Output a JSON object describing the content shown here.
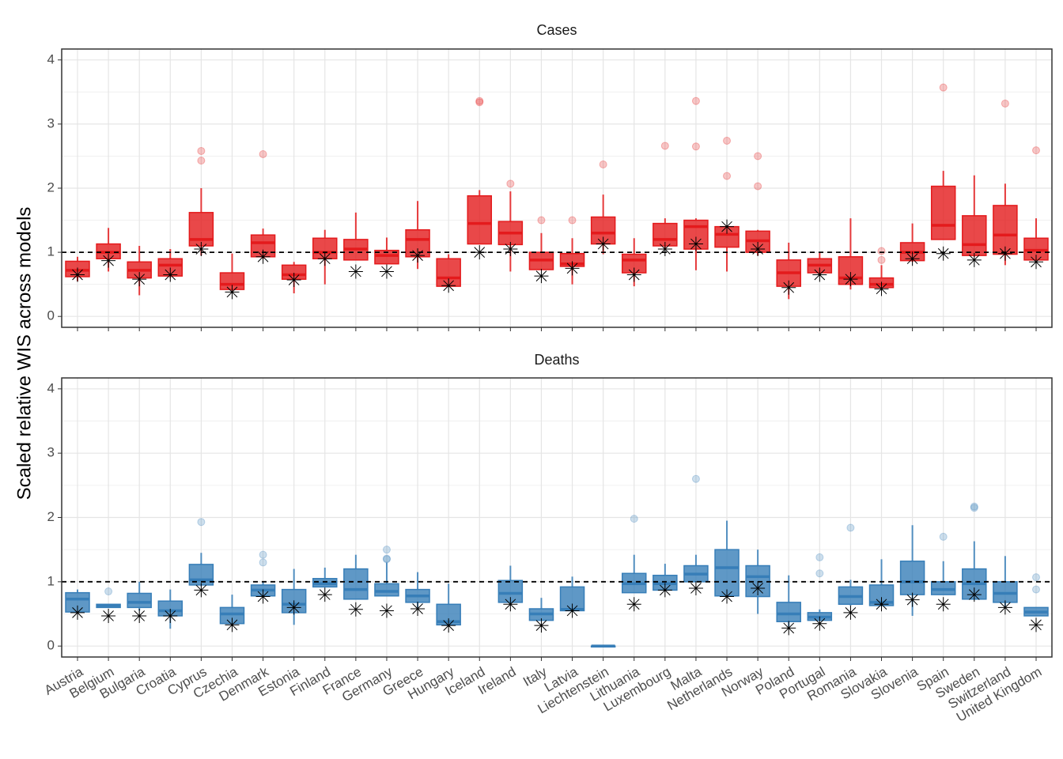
{
  "chart_data": [
    {
      "type": "box",
      "title": "Cases",
      "ylabel": "Scaled relative WIS across models",
      "color": "#e41a1c",
      "hline": 1,
      "grid": true,
      "ylim": [
        -0.17,
        4.17
      ],
      "yticks": [
        0,
        1,
        2,
        3,
        4
      ],
      "categories": [
        "Austria",
        "Belgium",
        "Bulgaria",
        "Croatia",
        "Cyprus",
        "Czechia",
        "Denmark",
        "Estonia",
        "Finland",
        "France",
        "Germany",
        "Greece",
        "Hungary",
        "Iceland",
        "Ireland",
        "Italy",
        "Latvia",
        "Liechtenstein",
        "Lithuania",
        "Luxembourg",
        "Malta",
        "Netherlands",
        "Norway",
        "Poland",
        "Portugal",
        "Romania",
        "Slovakia",
        "Slovenia",
        "Spain",
        "Sweden",
        "Switzerland",
        "United Kingdom"
      ],
      "boxes": [
        {
          "low": 0.55,
          "q1": 0.62,
          "median": 0.72,
          "q3": 0.86,
          "high": 0.93,
          "outliers": [],
          "star": 0.65
        },
        {
          "low": 0.7,
          "q1": 0.9,
          "median": 1.0,
          "q3": 1.13,
          "high": 1.38,
          "outliers": [],
          "star": 0.87
        },
        {
          "low": 0.33,
          "q1": 0.6,
          "median": 0.72,
          "q3": 0.85,
          "high": 1.1,
          "outliers": [],
          "star": 0.58
        },
        {
          "low": 0.6,
          "q1": 0.63,
          "median": 0.8,
          "q3": 0.9,
          "high": 1.05,
          "outliers": [],
          "star": 0.65
        },
        {
          "low": 0.95,
          "q1": 1.1,
          "median": 1.2,
          "q3": 1.62,
          "high": 2.0,
          "outliers": [
            2.43,
            2.58
          ],
          "star": 1.05
        },
        {
          "low": 0.4,
          "q1": 0.42,
          "median": 0.5,
          "q3": 0.68,
          "high": 0.98,
          "outliers": [],
          "star": 0.38
        },
        {
          "low": 0.9,
          "q1": 0.93,
          "median": 1.15,
          "q3": 1.27,
          "high": 1.37,
          "outliers": [
            2.53
          ],
          "star": 0.93
        },
        {
          "low": 0.36,
          "q1": 0.58,
          "median": 0.65,
          "q3": 0.8,
          "high": 0.85,
          "outliers": [],
          "star": 0.57
        },
        {
          "low": 0.5,
          "q1": 0.9,
          "median": 1.0,
          "q3": 1.22,
          "high": 1.35,
          "outliers": [],
          "star": 0.9
        },
        {
          "low": 0.88,
          "q1": 0.88,
          "median": 1.05,
          "q3": 1.2,
          "high": 1.62,
          "outliers": [],
          "star": 0.7
        },
        {
          "low": 0.82,
          "q1": 0.82,
          "median": 0.95,
          "q3": 1.03,
          "high": 1.23,
          "outliers": [],
          "star": 0.7
        },
        {
          "low": 0.74,
          "q1": 0.93,
          "median": 1.2,
          "q3": 1.35,
          "high": 1.8,
          "outliers": [],
          "star": 0.95
        },
        {
          "low": 0.47,
          "q1": 0.47,
          "median": 0.6,
          "q3": 0.9,
          "high": 0.97,
          "outliers": [],
          "star": 0.48
        },
        {
          "low": 1.13,
          "q1": 1.13,
          "median": 1.45,
          "q3": 1.88,
          "high": 1.97,
          "outliers": [
            3.34,
            3.36
          ],
          "star": 1.0
        },
        {
          "low": 0.7,
          "q1": 1.12,
          "median": 1.3,
          "q3": 1.48,
          "high": 1.95,
          "outliers": [
            2.07
          ],
          "star": 1.05
        },
        {
          "low": 0.73,
          "q1": 0.73,
          "median": 0.88,
          "q3": 1.0,
          "high": 1.3,
          "outliers": [
            1.5
          ],
          "star": 0.63
        },
        {
          "low": 0.5,
          "q1": 0.78,
          "median": 0.82,
          "q3": 0.98,
          "high": 1.22,
          "outliers": [
            1.5
          ],
          "star": 0.75
        },
        {
          "low": 0.97,
          "q1": 1.13,
          "median": 1.3,
          "q3": 1.55,
          "high": 1.9,
          "outliers": [
            2.37
          ],
          "star": 1.13
        },
        {
          "low": 0.47,
          "q1": 0.68,
          "median": 0.88,
          "q3": 0.97,
          "high": 1.22,
          "outliers": [],
          "star": 0.65
        },
        {
          "low": 1.05,
          "q1": 1.1,
          "median": 1.2,
          "q3": 1.45,
          "high": 1.53,
          "outliers": [
            2.66
          ],
          "star": 1.05
        },
        {
          "low": 0.72,
          "q1": 1.05,
          "median": 1.4,
          "q3": 1.5,
          "high": 1.53,
          "outliers": [
            2.65,
            3.36
          ],
          "star": 1.13
        },
        {
          "low": 0.7,
          "q1": 1.08,
          "median": 1.28,
          "q3": 1.4,
          "high": 1.42,
          "outliers": [
            2.19,
            2.74
          ],
          "star": 1.4
        },
        {
          "low": 0.95,
          "q1": 1.0,
          "median": 1.18,
          "q3": 1.33,
          "high": 1.35,
          "outliers": [
            2.03,
            2.5
          ],
          "star": 1.05
        },
        {
          "low": 0.27,
          "q1": 0.47,
          "median": 0.68,
          "q3": 0.88,
          "high": 1.15,
          "outliers": [],
          "star": 0.45
        },
        {
          "low": 0.65,
          "q1": 0.68,
          "median": 0.8,
          "q3": 0.9,
          "high": 1.0,
          "outliers": [],
          "star": 0.65
        },
        {
          "low": 0.42,
          "q1": 0.5,
          "median": 0.6,
          "q3": 0.93,
          "high": 1.53,
          "outliers": [],
          "star": 0.58
        },
        {
          "low": 0.42,
          "q1": 0.45,
          "median": 0.5,
          "q3": 0.6,
          "high": 0.8,
          "outliers": [
            0.88,
            1.02
          ],
          "star": 0.43
        },
        {
          "low": 0.85,
          "q1": 0.87,
          "median": 1.0,
          "q3": 1.15,
          "high": 1.45,
          "outliers": [],
          "star": 0.9
        },
        {
          "low": 1.2,
          "q1": 1.2,
          "median": 1.42,
          "q3": 2.03,
          "high": 2.27,
          "outliers": [
            3.57
          ],
          "star": 0.98
        },
        {
          "low": 0.93,
          "q1": 0.95,
          "median": 1.12,
          "q3": 1.57,
          "high": 2.2,
          "outliers": [],
          "star": 0.88
        },
        {
          "low": 0.8,
          "q1": 0.97,
          "median": 1.27,
          "q3": 1.73,
          "high": 2.07,
          "outliers": [
            3.32
          ],
          "star": 0.98
        },
        {
          "low": 0.88,
          "q1": 0.88,
          "median": 1.03,
          "q3": 1.22,
          "high": 1.53,
          "outliers": [
            2.59
          ],
          "star": 0.85
        }
      ]
    },
    {
      "type": "box",
      "title": "Deaths",
      "color": "#377eb8",
      "hline": 1,
      "grid": true,
      "ylim": [
        -0.17,
        4.17
      ],
      "yticks": [
        0,
        1,
        2,
        3,
        4
      ],
      "categories": [
        "Austria",
        "Belgium",
        "Bulgaria",
        "Croatia",
        "Cyprus",
        "Czechia",
        "Denmark",
        "Estonia",
        "Finland",
        "France",
        "Germany",
        "Greece",
        "Hungary",
        "Iceland",
        "Ireland",
        "Italy",
        "Latvia",
        "Liechtenstein",
        "Lithuania",
        "Luxembourg",
        "Malta",
        "Netherlands",
        "Norway",
        "Poland",
        "Portugal",
        "Romania",
        "Slovakia",
        "Slovenia",
        "Spain",
        "Sweden",
        "Switzerland",
        "United Kingdom"
      ],
      "boxes": [
        {
          "low": 0.52,
          "q1": 0.53,
          "median": 0.73,
          "q3": 0.83,
          "high": 0.88,
          "outliers": [],
          "star": 0.52
        },
        {
          "low": 0.6,
          "q1": 0.6,
          "median": 0.63,
          "q3": 0.65,
          "high": 0.65,
          "outliers": [
            0.85
          ],
          "star": 0.47
        },
        {
          "low": 0.55,
          "q1": 0.6,
          "median": 0.68,
          "q3": 0.82,
          "high": 1.0,
          "outliers": [],
          "star": 0.47
        },
        {
          "low": 0.27,
          "q1": 0.47,
          "median": 0.55,
          "q3": 0.7,
          "high": 0.88,
          "outliers": [],
          "star": 0.47
        },
        {
          "low": 0.93,
          "q1": 0.95,
          "median": 1.03,
          "q3": 1.27,
          "high": 1.45,
          "outliers": [
            1.93
          ],
          "star": 0.87
        },
        {
          "low": 0.35,
          "q1": 0.35,
          "median": 0.5,
          "q3": 0.6,
          "high": 0.8,
          "outliers": [],
          "star": 0.33
        },
        {
          "low": 0.78,
          "q1": 0.78,
          "median": 0.87,
          "q3": 0.95,
          "high": 1.0,
          "outliers": [
            1.3,
            1.42
          ],
          "star": 0.77
        },
        {
          "low": 0.33,
          "q1": 0.52,
          "median": 0.65,
          "q3": 0.88,
          "high": 1.2,
          "outliers": [],
          "star": 0.6
        },
        {
          "low": 0.92,
          "q1": 0.92,
          "median": 0.97,
          "q3": 1.05,
          "high": 1.22,
          "outliers": [],
          "star": 0.8
        },
        {
          "low": 0.73,
          "q1": 0.73,
          "median": 0.88,
          "q3": 1.2,
          "high": 1.42,
          "outliers": [],
          "star": 0.57
        },
        {
          "low": 0.78,
          "q1": 0.78,
          "median": 0.85,
          "q3": 0.97,
          "high": 1.3,
          "outliers": [
            1.35,
            1.36,
            1.5
          ],
          "star": 0.55
        },
        {
          "low": 0.6,
          "q1": 0.68,
          "median": 0.78,
          "q3": 0.88,
          "high": 1.15,
          "outliers": [],
          "star": 0.58
        },
        {
          "low": 0.3,
          "q1": 0.33,
          "median": 0.38,
          "q3": 0.65,
          "high": 0.97,
          "outliers": [],
          "star": 0.32
        },
        null,
        {
          "low": 0.68,
          "q1": 0.68,
          "median": 0.82,
          "q3": 1.02,
          "high": 1.25,
          "outliers": [],
          "star": 0.65
        },
        {
          "low": 0.4,
          "q1": 0.4,
          "median": 0.5,
          "q3": 0.58,
          "high": 0.75,
          "outliers": [],
          "star": 0.32
        },
        {
          "low": 0.53,
          "q1": 0.55,
          "median": 0.57,
          "q3": 0.92,
          "high": 1.08,
          "outliers": [],
          "star": 0.55
        },
        {
          "low": 0,
          "q1": 0,
          "median": 0,
          "q3": 0,
          "high": 0,
          "outliers": [],
          "star": null
        },
        {
          "low": 0.83,
          "q1": 0.83,
          "median": 0.97,
          "q3": 1.13,
          "high": 1.42,
          "outliers": [
            1.98
          ],
          "star": 0.65
        },
        {
          "low": 0.87,
          "q1": 0.87,
          "median": 0.97,
          "q3": 1.1,
          "high": 1.28,
          "outliers": [],
          "star": 0.87
        },
        {
          "low": 1.0,
          "q1": 1.0,
          "median": 1.12,
          "q3": 1.25,
          "high": 1.42,
          "outliers": [
            2.6
          ],
          "star": 0.9
        },
        {
          "low": 0.77,
          "q1": 0.78,
          "median": 1.22,
          "q3": 1.5,
          "high": 1.95,
          "outliers": [],
          "star": 0.77
        },
        {
          "low": 0.5,
          "q1": 0.77,
          "median": 1.08,
          "q3": 1.25,
          "high": 1.5,
          "outliers": [],
          "star": 0.9
        },
        {
          "low": 0.3,
          "q1": 0.38,
          "median": 0.5,
          "q3": 0.68,
          "high": 1.1,
          "outliers": [],
          "star": 0.28
        },
        {
          "low": 0.4,
          "q1": 0.4,
          "median": 0.45,
          "q3": 0.52,
          "high": 0.57,
          "outliers": [
            1.13,
            1.38
          ],
          "star": 0.35
        },
        {
          "low": 0.63,
          "q1": 0.65,
          "median": 0.77,
          "q3": 0.92,
          "high": 1.03,
          "outliers": [
            1.84
          ],
          "star": 0.52
        },
        {
          "low": 0.63,
          "q1": 0.63,
          "median": 0.68,
          "q3": 0.95,
          "high": 1.35,
          "outliers": [],
          "star": 0.65
        },
        {
          "low": 0.47,
          "q1": 0.8,
          "median": 1.0,
          "q3": 1.32,
          "high": 1.88,
          "outliers": [],
          "star": 0.72
        },
        {
          "low": 0.8,
          "q1": 0.8,
          "median": 0.88,
          "q3": 1.0,
          "high": 1.32,
          "outliers": [
            1.7
          ],
          "star": 0.65
        },
        {
          "low": 0.72,
          "q1": 0.73,
          "median": 0.97,
          "q3": 1.2,
          "high": 1.63,
          "outliers": [
            2.15,
            2.17
          ],
          "star": 0.8
        },
        {
          "low": 0.6,
          "q1": 0.68,
          "median": 0.82,
          "q3": 1.0,
          "high": 1.4,
          "outliers": [],
          "star": 0.6
        },
        {
          "low": 0.47,
          "q1": 0.47,
          "median": 0.53,
          "q3": 0.6,
          "high": 0.6,
          "outliers": [
            0.88,
            1.07
          ],
          "star": 0.33
        }
      ]
    }
  ]
}
